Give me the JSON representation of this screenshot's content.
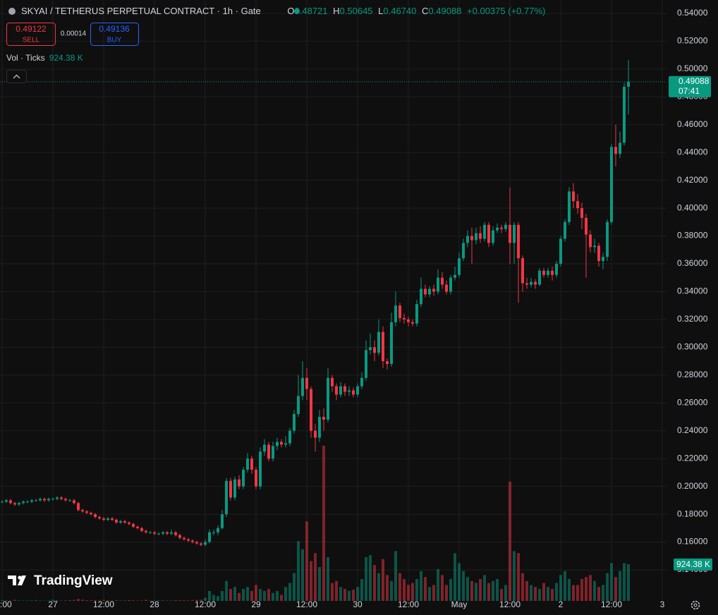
{
  "header": {
    "symbol": "SKYAI / TETHERUS PERPETUAL CONTRACT · 1h · Gate",
    "o_label": "O",
    "open": "0.48721",
    "h_label": "H",
    "high": "0.50645",
    "l_label": "L",
    "low": "0.46740",
    "c_label": "C",
    "close": "0.49088",
    "change": "+0.00375 (+0.77%)",
    "sell_price": "0.49122",
    "sell": "SELL",
    "spread": "0.00014",
    "buy_price": "0.49136",
    "buy": "BUY",
    "indicator": "Vol · Ticks",
    "volume": "924.38 K"
  },
  "logo": "TradingView",
  "chart_data": {
    "type": "candlestick",
    "up_color": "#089981",
    "down_color": "#f23645",
    "grid": true,
    "xlim": [
      -0.5,
      157
    ],
    "ylim": [
      0.1177,
      0.5496
    ],
    "xticks": [
      {
        "value": 0,
        "label": ":00"
      },
      {
        "value": 12,
        "label": "27"
      },
      {
        "value": 24,
        "label": "12:00"
      },
      {
        "value": 36,
        "label": "28"
      },
      {
        "value": 48,
        "label": "12:00"
      },
      {
        "value": 60,
        "label": "29"
      },
      {
        "value": 72,
        "label": "12:00"
      },
      {
        "value": 84,
        "label": "30"
      },
      {
        "value": 96,
        "label": "12:00"
      },
      {
        "value": 108,
        "label": "May"
      },
      {
        "value": 120,
        "label": "12:00"
      },
      {
        "value": 132,
        "label": "2"
      },
      {
        "value": 144,
        "label": "12:00"
      },
      {
        "value": 156,
        "label": "3"
      }
    ],
    "yticks": [
      {
        "value": 0.14,
        "label": "0.14000"
      },
      {
        "value": 0.16,
        "label": "0.16000"
      },
      {
        "value": 0.18,
        "label": "0.18000"
      },
      {
        "value": 0.2,
        "label": "0.20000"
      },
      {
        "value": 0.22,
        "label": "0.22000"
      },
      {
        "value": 0.24,
        "label": "0.24000"
      },
      {
        "value": 0.26,
        "label": "0.26000"
      },
      {
        "value": 0.28,
        "label": "0.28000"
      },
      {
        "value": 0.3,
        "label": "0.30000"
      },
      {
        "value": 0.32,
        "label": "0.32000"
      },
      {
        "value": 0.34,
        "label": "0.34000"
      },
      {
        "value": 0.36,
        "label": "0.36000"
      },
      {
        "value": 0.38,
        "label": "0.38000"
      },
      {
        "value": 0.4,
        "label": "0.40000"
      },
      {
        "value": 0.42,
        "label": "0.42000"
      },
      {
        "value": 0.44,
        "label": "0.44000"
      },
      {
        "value": 0.46,
        "label": "0.46000"
      },
      {
        "value": 0.48,
        "label": "0.48000"
      },
      {
        "value": 0.5,
        "label": "0.50000"
      },
      {
        "value": 0.52,
        "label": "0.52000"
      },
      {
        "value": 0.54,
        "label": "0.54000"
      }
    ],
    "price_label": "0.49088",
    "countdown": "07:41",
    "volume_label": "924.38 K",
    "open": [
      0.189,
      0.189,
      0.19,
      0.188,
      0.187,
      0.188,
      0.189,
      0.189,
      0.19,
      0.19,
      0.191,
      0.19,
      0.191,
      0.191,
      0.192,
      0.191,
      0.19,
      0.19,
      0.188,
      0.183,
      0.182,
      0.181,
      0.18,
      0.178,
      0.177,
      0.176,
      0.177,
      0.176,
      0.174,
      0.175,
      0.174,
      0.173,
      0.171,
      0.17,
      0.168,
      0.167,
      0.167,
      0.166,
      0.166,
      0.167,
      0.166,
      0.167,
      0.165,
      0.163,
      0.162,
      0.161,
      0.16,
      0.159,
      0.158,
      0.16,
      0.167,
      0.167,
      0.17,
      0.18,
      0.204,
      0.192,
      0.205,
      0.2,
      0.212,
      0.22,
      0.212,
      0.2,
      0.225,
      0.23,
      0.22,
      0.229,
      0.232,
      0.23,
      0.231,
      0.24,
      0.252,
      0.265,
      0.278,
      0.27,
      0.24,
      0.235,
      0.25,
      0.248,
      0.278,
      0.272,
      0.266,
      0.272,
      0.268,
      0.269,
      0.266,
      0.272,
      0.278,
      0.298,
      0.3,
      0.296,
      0.311,
      0.29,
      0.288,
      0.318,
      0.33,
      0.321,
      0.32,
      0.318,
      0.317,
      0.331,
      0.342,
      0.338,
      0.342,
      0.34,
      0.35,
      0.345,
      0.34,
      0.35,
      0.352,
      0.364,
      0.375,
      0.38,
      0.377,
      0.382,
      0.378,
      0.388,
      0.375,
      0.384,
      0.386,
      0.385,
      0.388,
      0.375,
      0.388,
      0.364,
      0.346,
      0.345,
      0.347,
      0.345,
      0.355,
      0.352,
      0.355,
      0.352,
      0.36,
      0.378,
      0.39,
      0.412,
      0.405,
      0.4,
      0.393,
      0.381,
      0.372,
      0.373,
      0.362,
      0.365,
      0.39,
      0.444,
      0.439,
      0.447,
      0.48721
    ],
    "high": [
      0.19,
      0.191,
      0.191,
      0.189,
      0.189,
      0.19,
      0.19,
      0.191,
      0.191,
      0.192,
      0.192,
      0.192,
      0.192,
      0.193,
      0.193,
      0.192,
      0.191,
      0.191,
      0.189,
      0.184,
      0.183,
      0.182,
      0.181,
      0.179,
      0.178,
      0.178,
      0.178,
      0.177,
      0.176,
      0.176,
      0.175,
      0.174,
      0.172,
      0.171,
      0.169,
      0.168,
      0.168,
      0.167,
      0.168,
      0.168,
      0.169,
      0.168,
      0.166,
      0.164,
      0.163,
      0.162,
      0.161,
      0.16,
      0.162,
      0.169,
      0.169,
      0.172,
      0.183,
      0.206,
      0.206,
      0.207,
      0.208,
      0.214,
      0.224,
      0.222,
      0.214,
      0.228,
      0.234,
      0.232,
      0.232,
      0.235,
      0.234,
      0.236,
      0.242,
      0.255,
      0.28,
      0.29,
      0.285,
      0.272,
      0.245,
      0.255,
      0.256,
      0.285,
      0.28,
      0.274,
      0.275,
      0.274,
      0.272,
      0.271,
      0.274,
      0.282,
      0.305,
      0.31,
      0.305,
      0.32,
      0.315,
      0.292,
      0.325,
      0.34,
      0.332,
      0.324,
      0.322,
      0.32,
      0.334,
      0.35,
      0.345,
      0.344,
      0.345,
      0.356,
      0.354,
      0.348,
      0.352,
      0.358,
      0.368,
      0.378,
      0.384,
      0.386,
      0.386,
      0.387,
      0.39,
      0.39,
      0.387,
      0.389,
      0.388,
      0.39,
      0.415,
      0.39,
      0.39,
      0.366,
      0.35,
      0.35,
      0.349,
      0.357,
      0.357,
      0.357,
      0.358,
      0.362,
      0.38,
      0.392,
      0.415,
      0.418,
      0.41,
      0.404,
      0.396,
      0.384,
      0.378,
      0.375,
      0.368,
      0.392,
      0.446,
      0.46,
      0.455,
      0.49,
      0.50645
    ],
    "low": [
      0.188,
      0.188,
      0.187,
      0.186,
      0.186,
      0.187,
      0.188,
      0.188,
      0.189,
      0.189,
      0.189,
      0.189,
      0.19,
      0.19,
      0.19,
      0.189,
      0.189,
      0.187,
      0.182,
      0.181,
      0.18,
      0.179,
      0.177,
      0.176,
      0.175,
      0.175,
      0.175,
      0.173,
      0.173,
      0.173,
      0.172,
      0.17,
      0.169,
      0.167,
      0.166,
      0.166,
      0.165,
      0.165,
      0.165,
      0.165,
      0.165,
      0.164,
      0.162,
      0.161,
      0.16,
      0.159,
      0.158,
      0.157,
      0.157,
      0.159,
      0.165,
      0.165,
      0.169,
      0.178,
      0.19,
      0.19,
      0.198,
      0.198,
      0.21,
      0.209,
      0.198,
      0.198,
      0.222,
      0.218,
      0.218,
      0.226,
      0.228,
      0.228,
      0.229,
      0.238,
      0.25,
      0.262,
      0.262,
      0.235,
      0.225,
      0.232,
      0.24,
      0.246,
      0.268,
      0.262,
      0.264,
      0.265,
      0.265,
      0.264,
      0.264,
      0.27,
      0.276,
      0.295,
      0.29,
      0.294,
      0.285,
      0.284,
      0.286,
      0.315,
      0.318,
      0.317,
      0.315,
      0.315,
      0.315,
      0.329,
      0.336,
      0.336,
      0.337,
      0.338,
      0.342,
      0.338,
      0.338,
      0.348,
      0.35,
      0.362,
      0.372,
      0.36,
      0.374,
      0.375,
      0.376,
      0.372,
      0.373,
      0.382,
      0.382,
      0.383,
      0.36,
      0.36,
      0.332,
      0.34,
      0.342,
      0.343,
      0.342,
      0.344,
      0.35,
      0.35,
      0.348,
      0.35,
      0.358,
      0.376,
      0.388,
      0.4,
      0.396,
      0.385,
      0.35,
      0.368,
      0.368,
      0.358,
      0.356,
      0.362,
      0.388,
      0.43,
      0.436,
      0.445,
      0.4674
    ],
    "close": [
      0.189,
      0.19,
      0.188,
      0.187,
      0.188,
      0.189,
      0.189,
      0.19,
      0.19,
      0.191,
      0.19,
      0.191,
      0.191,
      0.192,
      0.191,
      0.19,
      0.19,
      0.188,
      0.183,
      0.182,
      0.181,
      0.18,
      0.178,
      0.177,
      0.176,
      0.177,
      0.176,
      0.174,
      0.175,
      0.174,
      0.173,
      0.171,
      0.17,
      0.168,
      0.167,
      0.167,
      0.166,
      0.166,
      0.167,
      0.166,
      0.167,
      0.165,
      0.163,
      0.162,
      0.161,
      0.16,
      0.159,
      0.158,
      0.16,
      0.167,
      0.167,
      0.17,
      0.18,
      0.204,
      0.192,
      0.205,
      0.2,
      0.212,
      0.22,
      0.212,
      0.2,
      0.225,
      0.23,
      0.22,
      0.229,
      0.232,
      0.23,
      0.231,
      0.24,
      0.252,
      0.265,
      0.278,
      0.27,
      0.24,
      0.235,
      0.25,
      0.248,
      0.278,
      0.272,
      0.266,
      0.272,
      0.268,
      0.269,
      0.266,
      0.272,
      0.278,
      0.298,
      0.3,
      0.296,
      0.311,
      0.29,
      0.288,
      0.318,
      0.33,
      0.321,
      0.32,
      0.318,
      0.317,
      0.331,
      0.342,
      0.338,
      0.342,
      0.34,
      0.35,
      0.345,
      0.34,
      0.35,
      0.352,
      0.364,
      0.375,
      0.38,
      0.377,
      0.382,
      0.378,
      0.388,
      0.375,
      0.384,
      0.386,
      0.385,
      0.388,
      0.375,
      0.388,
      0.364,
      0.346,
      0.345,
      0.347,
      0.345,
      0.355,
      0.352,
      0.355,
      0.352,
      0.36,
      0.378,
      0.39,
      0.412,
      0.405,
      0.4,
      0.393,
      0.381,
      0.372,
      0.373,
      0.362,
      0.365,
      0.39,
      0.444,
      0.439,
      0.447,
      0.48721,
      0.49088
    ],
    "volume": [
      20,
      15,
      10,
      25,
      12,
      8,
      10,
      15,
      20,
      10,
      8,
      12,
      30,
      15,
      10,
      12,
      20,
      25,
      45,
      30,
      18,
      15,
      20,
      12,
      25,
      15,
      10,
      18,
      12,
      15,
      20,
      15,
      10,
      12,
      25,
      10,
      8,
      12,
      15,
      10,
      12,
      20,
      15,
      18,
      12,
      20,
      25,
      30,
      80,
      250,
      150,
      120,
      250,
      500,
      300,
      350,
      200,
      300,
      350,
      250,
      400,
      300,
      250,
      300,
      200,
      250,
      150,
      350,
      450,
      700,
      1500,
      1300,
      2000,
      1000,
      1200,
      850,
      3900,
      1100,
      450,
      500,
      350,
      300,
      250,
      280,
      350,
      550,
      1100,
      1150,
      900,
      700,
      1050,
      650,
      500,
      1250,
      700,
      550,
      400,
      450,
      550,
      750,
      600,
      350,
      400,
      800,
      650,
      400,
      550,
      1200,
      950,
      750,
      600,
      500,
      450,
      550,
      650,
      450,
      500,
      550,
      300,
      400,
      3000,
      1250,
      1200,
      700,
      500,
      400,
      350,
      300,
      450,
      350,
      300,
      450,
      650,
      750,
      550,
      400,
      400,
      550,
      600,
      650,
      500,
      350,
      400,
      700,
      950,
      600,
      750,
      950,
      924.38
    ]
  }
}
